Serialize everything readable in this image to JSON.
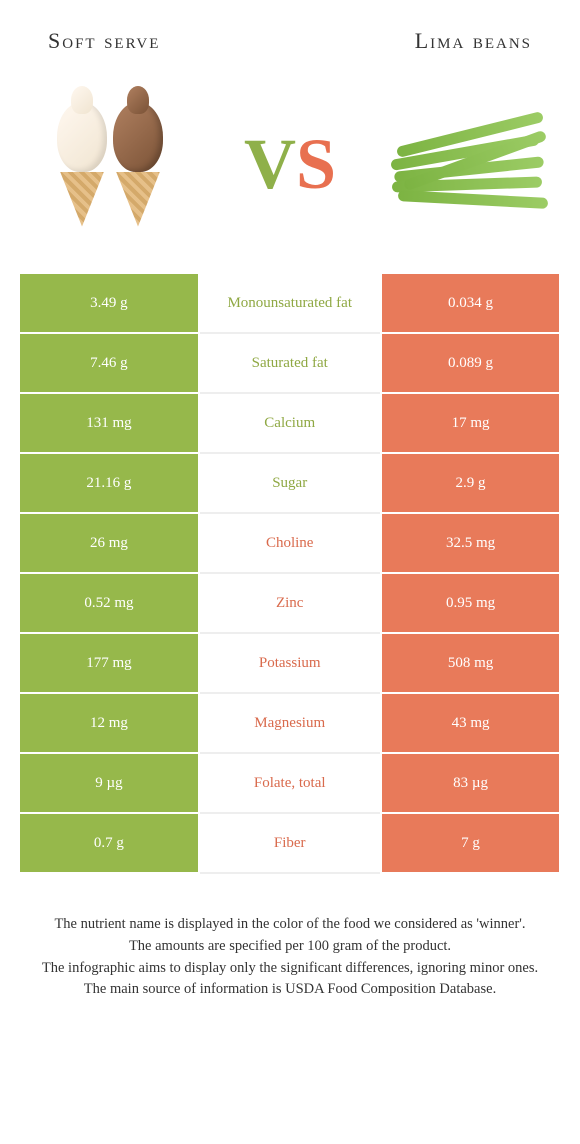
{
  "colors": {
    "left_bg": "#96b84b",
    "right_bg": "#e87a5a",
    "left_text": "#8fa843",
    "right_text": "#d96a4c",
    "page_bg": "#ffffff"
  },
  "header": {
    "left_title": "Soft serve",
    "right_title": "Lima beans",
    "vs_v": "V",
    "vs_s": "S"
  },
  "rows": [
    {
      "left": "3.49 g",
      "label": "Monounsaturated fat",
      "right": "0.034 g",
      "winner": "left"
    },
    {
      "left": "7.46 g",
      "label": "Saturated fat",
      "right": "0.089 g",
      "winner": "left"
    },
    {
      "left": "131 mg",
      "label": "Calcium",
      "right": "17 mg",
      "winner": "left"
    },
    {
      "left": "21.16 g",
      "label": "Sugar",
      "right": "2.9 g",
      "winner": "left"
    },
    {
      "left": "26 mg",
      "label": "Choline",
      "right": "32.5 mg",
      "winner": "right"
    },
    {
      "left": "0.52 mg",
      "label": "Zinc",
      "right": "0.95 mg",
      "winner": "right"
    },
    {
      "left": "177 mg",
      "label": "Potassium",
      "right": "508 mg",
      "winner": "right"
    },
    {
      "left": "12 mg",
      "label": "Magnesium",
      "right": "43 mg",
      "winner": "right"
    },
    {
      "left": "9 µg",
      "label": "Folate, total",
      "right": "83 µg",
      "winner": "right"
    },
    {
      "left": "0.7 g",
      "label": "Fiber",
      "right": "7 g",
      "winner": "right"
    }
  ],
  "footer": {
    "line1": "The nutrient name is displayed in the color of the food we considered as 'winner'.",
    "line2": "The amounts are specified per 100 gram of the product.",
    "line3": "The infographic aims to display only the significant differences, ignoring minor ones.",
    "line4": "The main source of information is USDA Food Composition Database."
  }
}
